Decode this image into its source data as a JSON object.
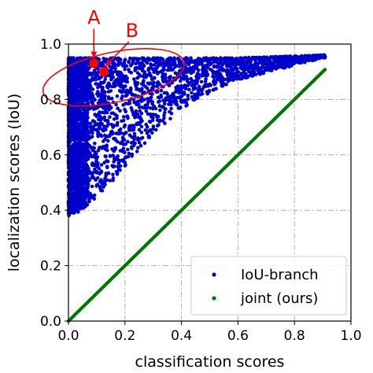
{
  "chart_data": {
    "type": "scatter",
    "xlabel": "classification scores",
    "ylabel": "localization scores (IoU)",
    "xlim": [
      0.0,
      1.0
    ],
    "ylim": [
      0.0,
      1.0
    ],
    "xticks": [
      "0.0",
      "0.2",
      "0.4",
      "0.6",
      "0.8",
      "1.0"
    ],
    "yticks": [
      "0.0",
      "0.2",
      "0.4",
      "0.6",
      "0.8",
      "1.0"
    ],
    "grid": true,
    "grid_style": "dash-dot",
    "legend_position": "bottom-right",
    "series": [
      {
        "name": "IoU-branch",
        "color": "#0000cc",
        "description": "dense cloud of detections; IoU ranges roughly 0.38 to 0.97, concentrated at low classification scores and narrowing toward high scores",
        "envelope_upper": [
          [
            0.0,
            0.95
          ],
          [
            0.1,
            0.95
          ],
          [
            0.3,
            0.95
          ],
          [
            0.6,
            0.95
          ],
          [
            0.9,
            0.96
          ]
        ],
        "envelope_lower": [
          [
            0.0,
            0.38
          ],
          [
            0.05,
            0.4
          ],
          [
            0.1,
            0.45
          ],
          [
            0.2,
            0.55
          ],
          [
            0.3,
            0.68
          ],
          [
            0.45,
            0.8
          ],
          [
            0.6,
            0.87
          ],
          [
            0.75,
            0.91
          ],
          [
            0.9,
            0.95
          ]
        ]
      },
      {
        "name": "joint (ours)",
        "color": "#007700",
        "description": "points lying on the diagonal y = x",
        "x_range": [
          0.0,
          0.91
        ]
      }
    ],
    "annotations": [
      {
        "label": "A",
        "point": [
          0.09,
          0.93
        ],
        "color": "#ff0000"
      },
      {
        "label": "B",
        "point": [
          0.125,
          0.9
        ],
        "color": "#ff0000"
      }
    ],
    "highlight_ellipse": {
      "center": [
        0.16,
        0.88
      ],
      "radii": [
        0.255,
        0.09
      ],
      "rotation_deg": -12,
      "color": "#ff0000"
    }
  }
}
